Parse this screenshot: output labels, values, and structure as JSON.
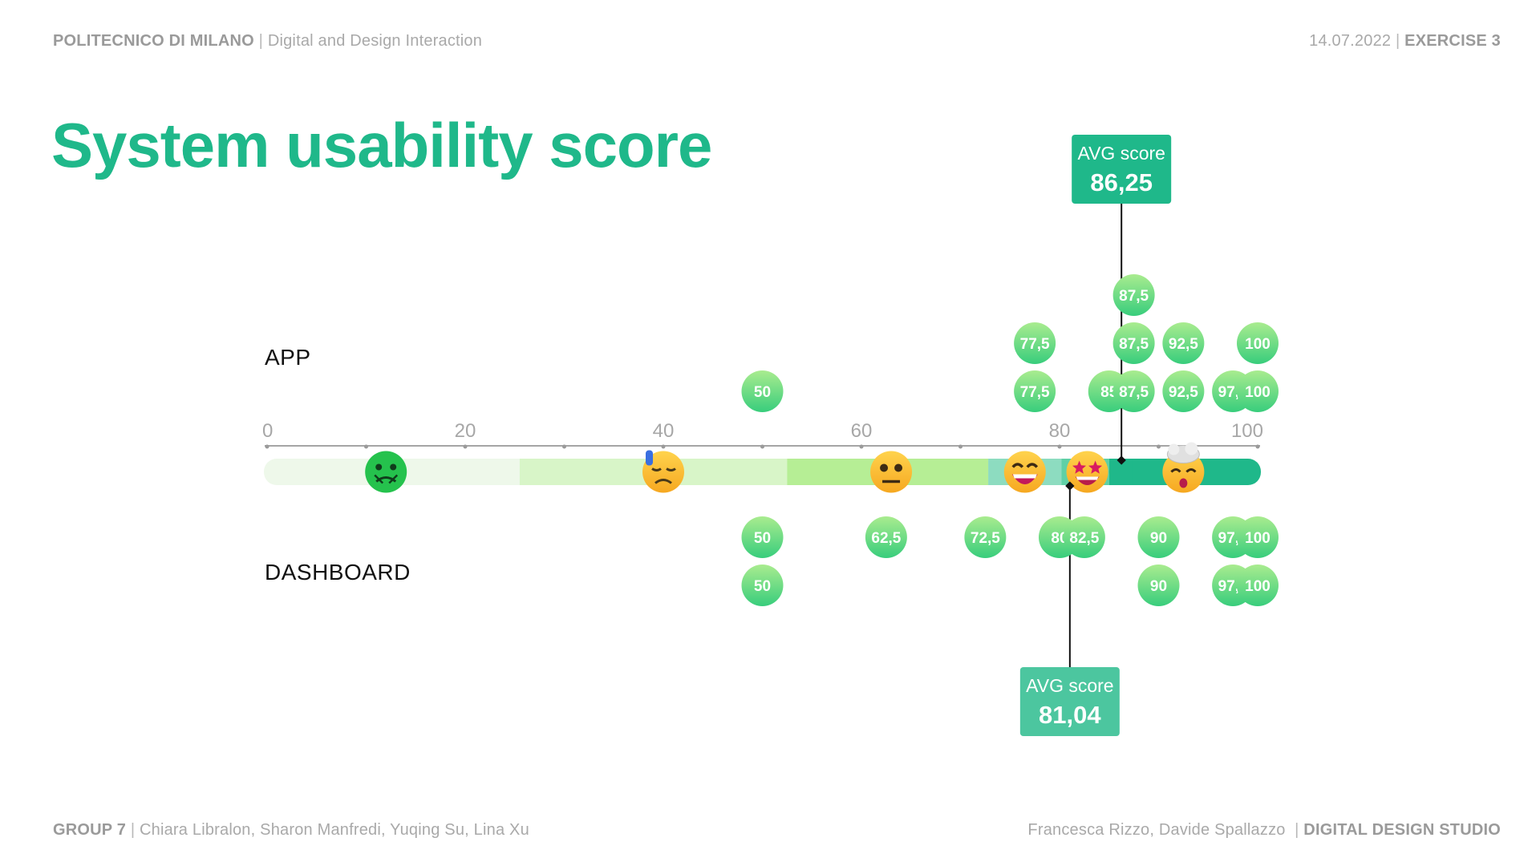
{
  "header": {
    "org": "POLITECNICO DI MILANO",
    "course": "Digital and Design Interaction",
    "date": "14.07.2022",
    "exercise": "EXERCISE 3"
  },
  "footer": {
    "group": "GROUP 7",
    "members": "Chiara Libralon, Sharon Manfredi, Yuqing Su, Lina Xu",
    "teachers": "Francesca Rizzo, Davide Spallazzo",
    "studio": "DIGITAL DESIGN STUDIO"
  },
  "chart_data": {
    "type": "scatter",
    "title": "System usability score",
    "xlim": [
      0,
      100
    ],
    "ticks": [
      0,
      20,
      40,
      60,
      80,
      100
    ],
    "tick_labels": [
      "0",
      "20",
      "40",
      "60",
      "80",
      "100"
    ],
    "scale_bands": [
      {
        "from": 0,
        "to": 25.5,
        "color": "#eef8ea"
      },
      {
        "from": 25.5,
        "to": 52.5,
        "color": "#d8f5c8"
      },
      {
        "from": 52.5,
        "to": 72.8,
        "color": "#b6ee95"
      },
      {
        "from": 72.8,
        "to": 80.2,
        "color": "#8ddcc0"
      },
      {
        "from": 80.2,
        "to": 85,
        "color": "#5fd0a6"
      },
      {
        "from": 85,
        "to": 100,
        "color": "#1fb88a"
      }
    ],
    "emoji_markers": [
      {
        "value": 12,
        "icon": "nauseated-face-icon"
      },
      {
        "value": 40,
        "icon": "downcast-sweat-face-icon"
      },
      {
        "value": 63,
        "icon": "neutral-face-icon"
      },
      {
        "value": 76.5,
        "icon": "grinning-face-icon"
      },
      {
        "value": 82.8,
        "icon": "star-struck-face-icon"
      },
      {
        "value": 92.5,
        "icon": "exploding-head-icon"
      }
    ],
    "series": [
      {
        "name": "APP",
        "labels": [
          "50",
          "77,5",
          "77,5",
          "85",
          "87,5",
          "87,5",
          "87,5",
          "92,5",
          "92,5",
          "97,5",
          "100",
          "100"
        ],
        "values": [
          50,
          77.5,
          77.5,
          85,
          87.5,
          87.5,
          87.5,
          92.5,
          92.5,
          97.5,
          100,
          100
        ],
        "avg": 86.25,
        "avg_title": "AVG score",
        "avg_label": "86,25",
        "avg_color": "#1fb88a"
      },
      {
        "name": "DASHBOARD",
        "labels": [
          "50",
          "50",
          "62,5",
          "72,5",
          "80",
          "82,5",
          "90",
          "90",
          "97,5",
          "97,5",
          "100",
          "100"
        ],
        "values": [
          50,
          50,
          62.5,
          72.5,
          80,
          82.5,
          90,
          90,
          97.5,
          97.5,
          100,
          100
        ],
        "avg": 81.04,
        "avg_title": "AVG score",
        "avg_label": "81,04",
        "avg_color": "#4cc69f"
      }
    ]
  }
}
